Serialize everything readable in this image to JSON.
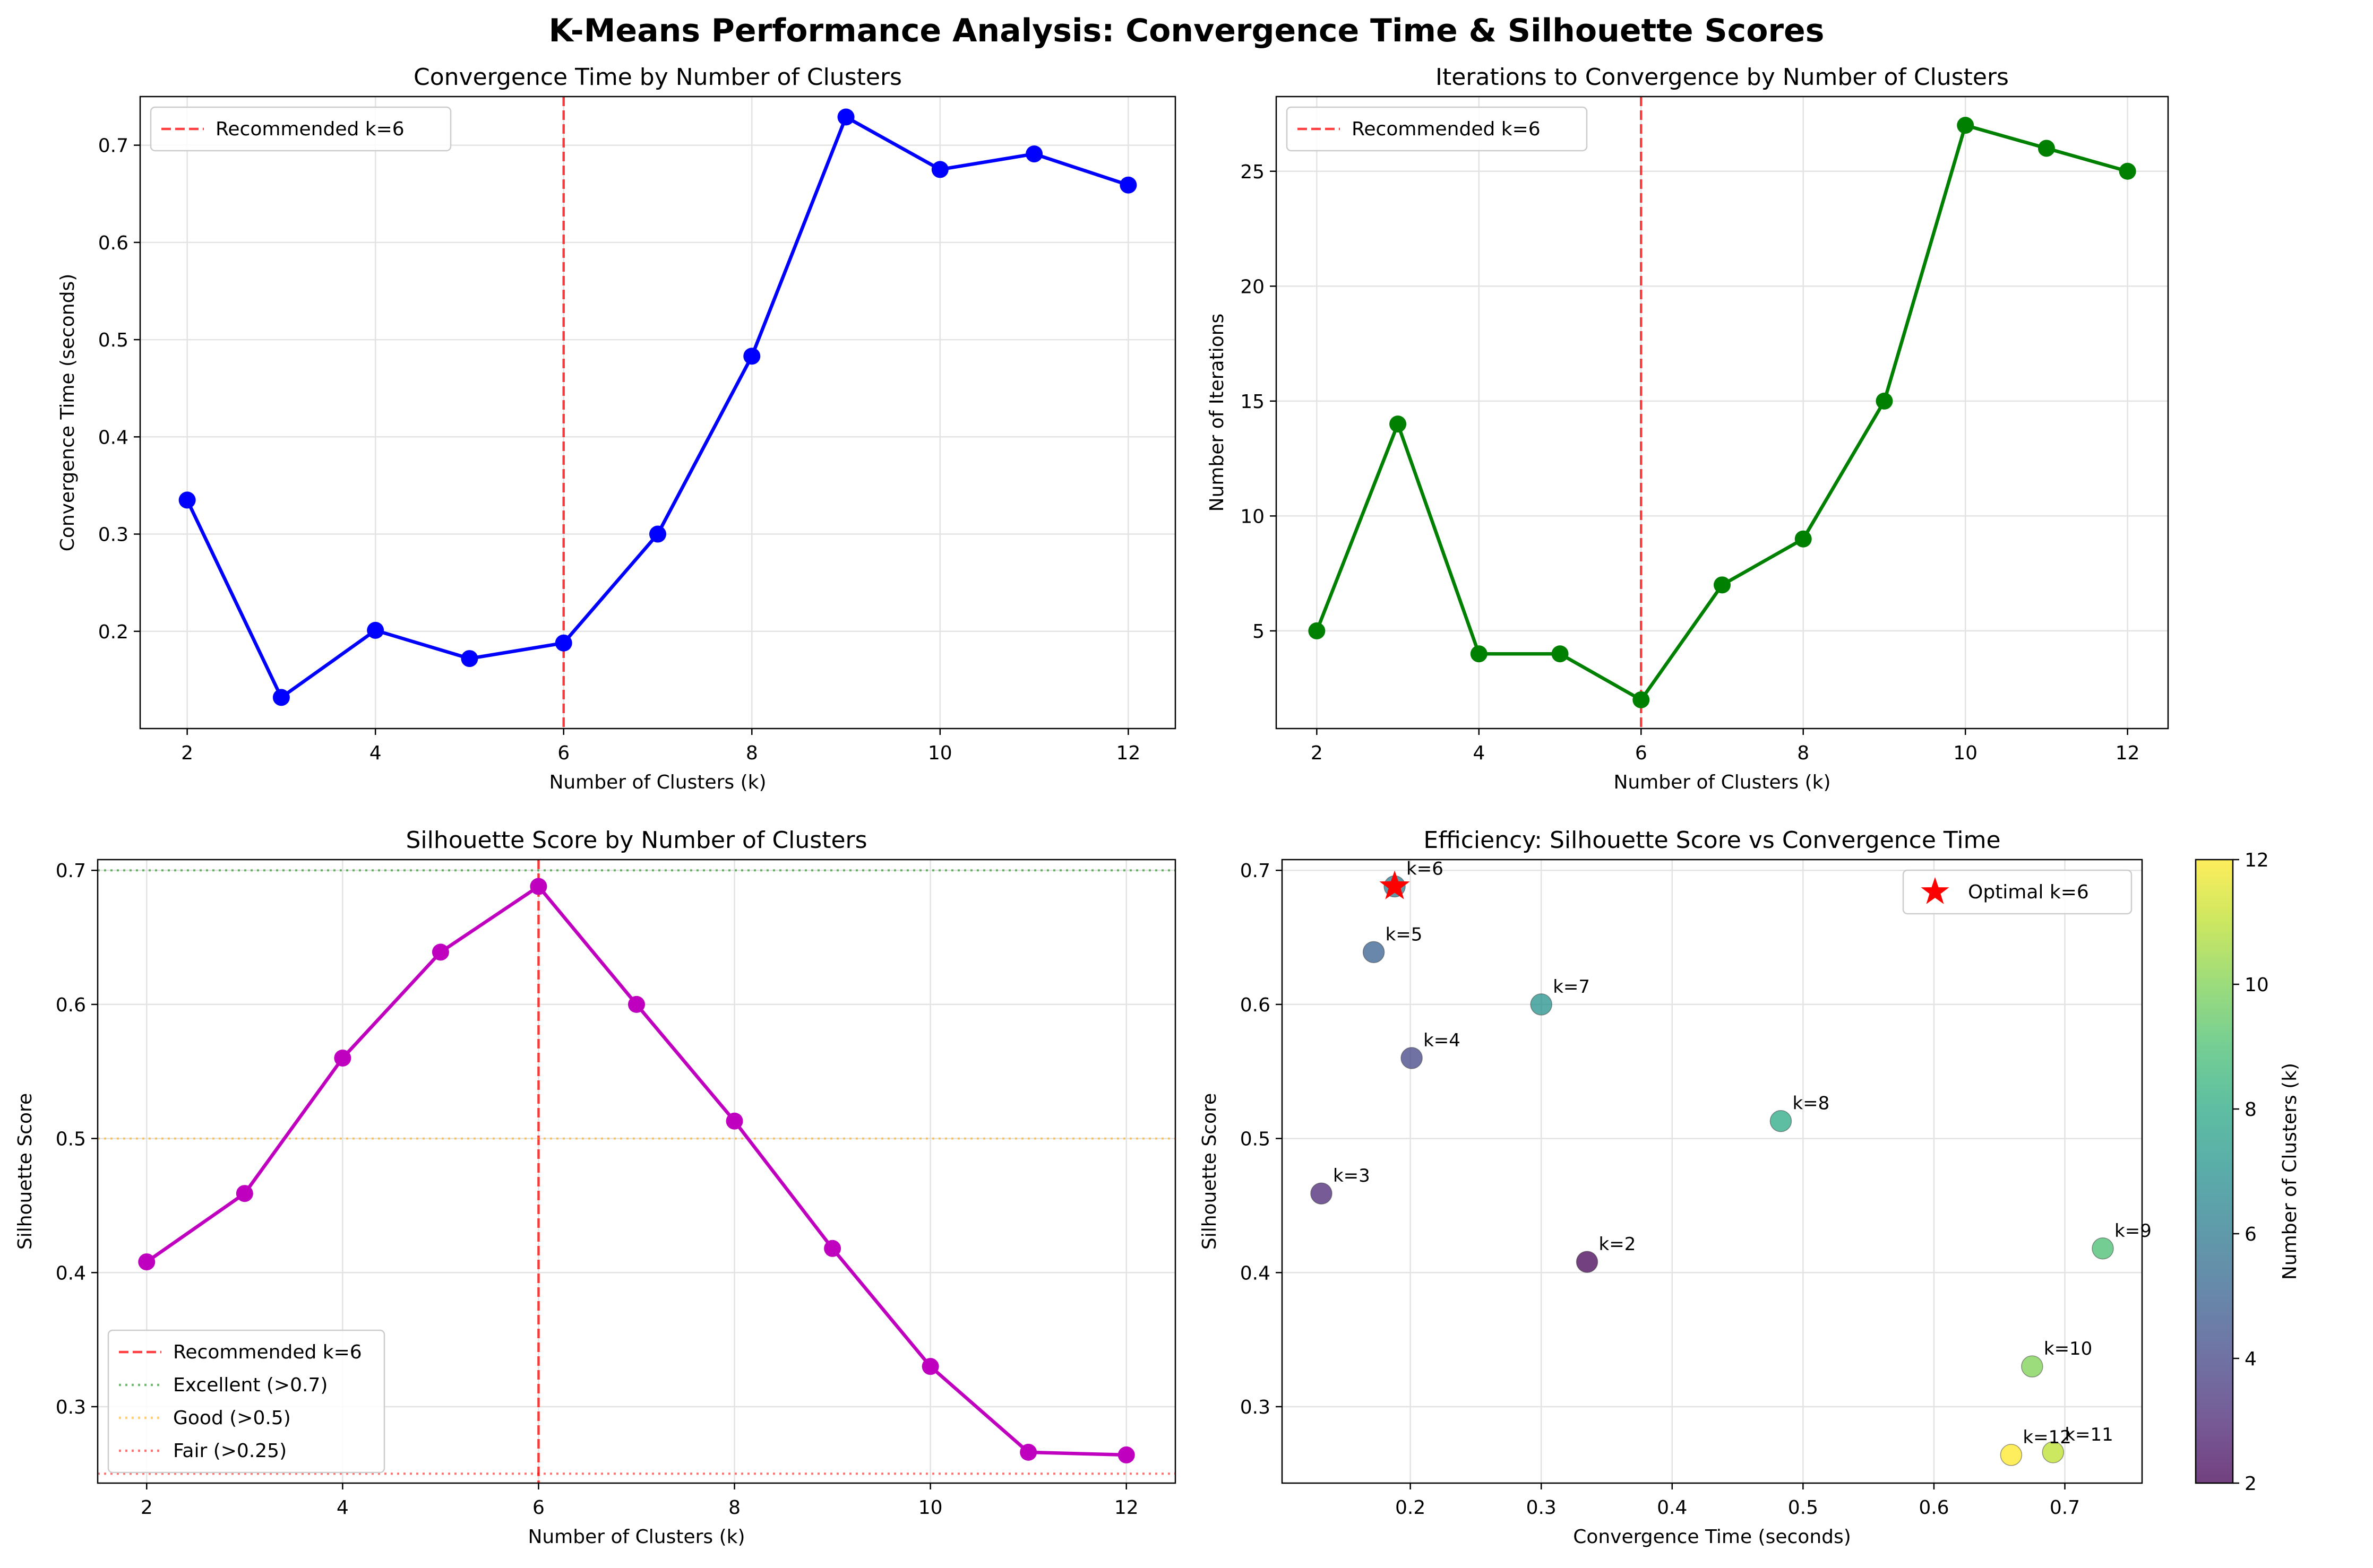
{
  "suptitle": "K-Means Performance Analysis: Convergence Time & Silhouette Scores",
  "chart_data": [
    {
      "type": "line",
      "title": "Convergence Time by Number of Clusters",
      "xlabel": "Number of Clusters (k)",
      "ylabel": "Convergence Time (seconds)",
      "xlim": [
        1.5,
        12.5
      ],
      "ylim": [
        0.1,
        0.75
      ],
      "xticks": [
        2,
        4,
        6,
        8,
        10,
        12
      ],
      "yticks": [
        0.2,
        0.3,
        0.4,
        0.5,
        0.6,
        0.7
      ],
      "grid": true,
      "legend_position": "upper left",
      "x": [
        2,
        3,
        4,
        5,
        6,
        7,
        8,
        9,
        10,
        11,
        12
      ],
      "series": [
        {
          "values": [
            0.335,
            0.132,
            0.201,
            0.172,
            0.188,
            0.3,
            0.483,
            0.729,
            0.675,
            0.691,
            0.659
          ],
          "color": "#0000ff"
        }
      ],
      "vlines": [
        {
          "x": 6,
          "label": "Recommended k=6",
          "color": "#ff0000",
          "style": "dashed"
        }
      ]
    },
    {
      "type": "line",
      "title": "Iterations to Convergence by Number of Clusters",
      "xlabel": "Number of Clusters (k)",
      "ylabel": "Number of Iterations",
      "xlim": [
        1.5,
        12.5
      ],
      "ylim": [
        0.75,
        28.25
      ],
      "xticks": [
        2,
        4,
        6,
        8,
        10,
        12
      ],
      "yticks": [
        5,
        10,
        15,
        20,
        25
      ],
      "grid": true,
      "legend_position": "upper left",
      "x": [
        2,
        3,
        4,
        5,
        6,
        7,
        8,
        9,
        10,
        11,
        12
      ],
      "series": [
        {
          "values": [
            5,
            14,
            4,
            4,
            2,
            7,
            9,
            15,
            27,
            26,
            25
          ],
          "color": "#008000"
        }
      ],
      "vlines": [
        {
          "x": 6,
          "label": "Recommended k=6",
          "color": "#ff0000",
          "style": "dashed"
        }
      ]
    },
    {
      "type": "line",
      "title": "Silhouette Score by Number of Clusters",
      "xlabel": "Number of Clusters (k)",
      "ylabel": "Silhouette Score",
      "xlim": [
        1.5,
        12.5
      ],
      "ylim": [
        0.243,
        0.708
      ],
      "xticks": [
        2,
        4,
        6,
        8,
        10,
        12
      ],
      "yticks": [
        0.3,
        0.4,
        0.5,
        0.6,
        0.7
      ],
      "grid": true,
      "legend_position": "lower left",
      "x": [
        2,
        3,
        4,
        5,
        6,
        7,
        8,
        9,
        10,
        11,
        12
      ],
      "series": [
        {
          "values": [
            0.408,
            0.459,
            0.56,
            0.639,
            0.688,
            0.6,
            0.513,
            0.418,
            0.33,
            0.266,
            0.264
          ],
          "color": "#bf00bf"
        }
      ],
      "vlines": [
        {
          "x": 6,
          "label": "Recommended k=6",
          "color": "#ff0000",
          "style": "dashed"
        }
      ],
      "hlines": [
        {
          "y": 0.7,
          "label": "Excellent (>0.7)",
          "color": "#008000",
          "style": "dotted"
        },
        {
          "y": 0.5,
          "label": "Good (>0.5)",
          "color": "#ffa500",
          "style": "dotted"
        },
        {
          "y": 0.25,
          "label": "Fair (>0.25)",
          "color": "#ff0000",
          "style": "dotted"
        }
      ]
    },
    {
      "type": "scatter",
      "title": "Efficiency: Silhouette Score vs Convergence Time",
      "xlabel": "Convergence Time (seconds)",
      "ylabel": "Silhouette Score",
      "xlim": [
        0.102,
        0.759
      ],
      "ylim": [
        0.243,
        0.708
      ],
      "xticks": [
        0.2,
        0.3,
        0.4,
        0.5,
        0.6,
        0.7
      ],
      "yticks": [
        0.3,
        0.4,
        0.5,
        0.6,
        0.7
      ],
      "grid": true,
      "legend_position": "upper right",
      "points": [
        {
          "k": 2,
          "x": 0.335,
          "y": 0.408,
          "label": "k=2"
        },
        {
          "k": 3,
          "x": 0.132,
          "y": 0.459,
          "label": "k=3"
        },
        {
          "k": 4,
          "x": 0.201,
          "y": 0.56,
          "label": "k=4"
        },
        {
          "k": 5,
          "x": 0.172,
          "y": 0.639,
          "label": "k=5"
        },
        {
          "k": 6,
          "x": 0.188,
          "y": 0.688,
          "label": "k=6"
        },
        {
          "k": 7,
          "x": 0.3,
          "y": 0.6,
          "label": "k=7"
        },
        {
          "k": 8,
          "x": 0.483,
          "y": 0.513,
          "label": "k=8"
        },
        {
          "k": 9,
          "x": 0.729,
          "y": 0.418,
          "label": "k=9"
        },
        {
          "k": 10,
          "x": 0.675,
          "y": 0.33,
          "label": "k=10"
        },
        {
          "k": 11,
          "x": 0.691,
          "y": 0.266,
          "label": "k=11"
        },
        {
          "k": 12,
          "x": 0.659,
          "y": 0.264,
          "label": "k=12"
        }
      ],
      "optimal": {
        "x": 0.188,
        "y": 0.688,
        "label": "Optimal k=6",
        "color": "#ff0000",
        "marker": "star"
      },
      "colorbar": {
        "label": "Number of Clusters (k)",
        "range": [
          2,
          12
        ],
        "ticks": [
          2,
          4,
          6,
          8,
          10,
          12
        ],
        "colormap": "viridis"
      }
    }
  ]
}
